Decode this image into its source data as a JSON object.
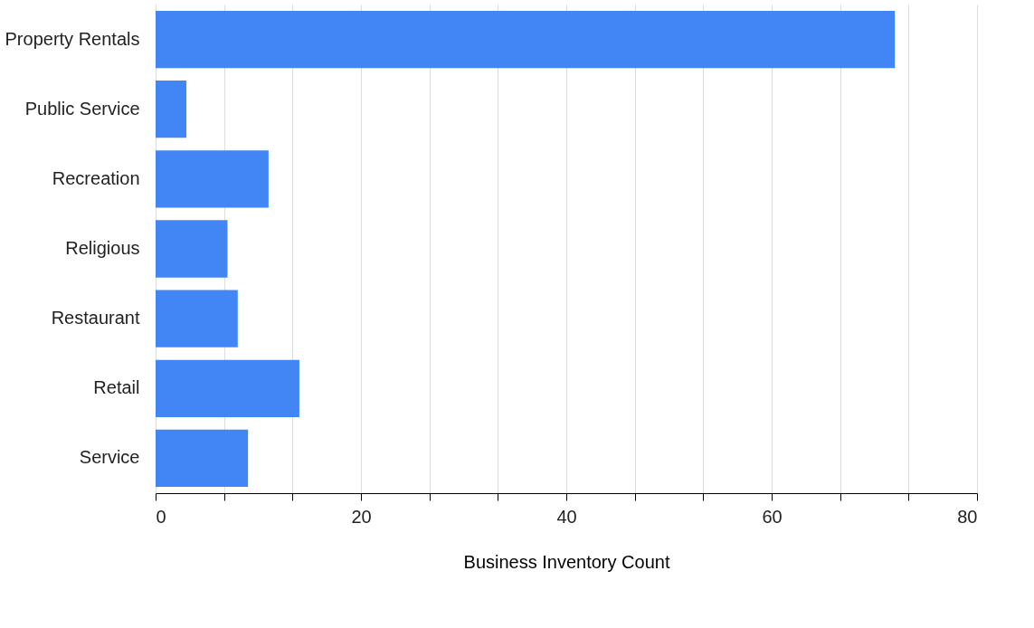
{
  "chart_data": {
    "type": "bar",
    "orientation": "horizontal",
    "categories": [
      "Property Rentals",
      "Public Service",
      "Recreation",
      "Religious",
      "Restaurant",
      "Retail",
      "Service"
    ],
    "values": [
      72,
      3,
      11,
      7,
      8,
      14,
      9
    ],
    "color": "#4285f4",
    "xlabel": "Business Inventory Count",
    "xlim": [
      0,
      80
    ],
    "xticks": [
      0,
      {
        "value": 6.667,
        "label": null
      },
      {
        "value": 13.333,
        "label": null
      },
      20,
      {
        "value": 26.667,
        "label": null
      },
      {
        "value": 33.333,
        "label": null
      },
      40,
      {
        "value": 46.667,
        "label": null
      },
      {
        "value": 53.333,
        "label": null
      },
      60,
      {
        "value": 66.667,
        "label": null
      },
      {
        "value": 73.333,
        "label": null
      },
      80
    ],
    "grid": "x"
  }
}
